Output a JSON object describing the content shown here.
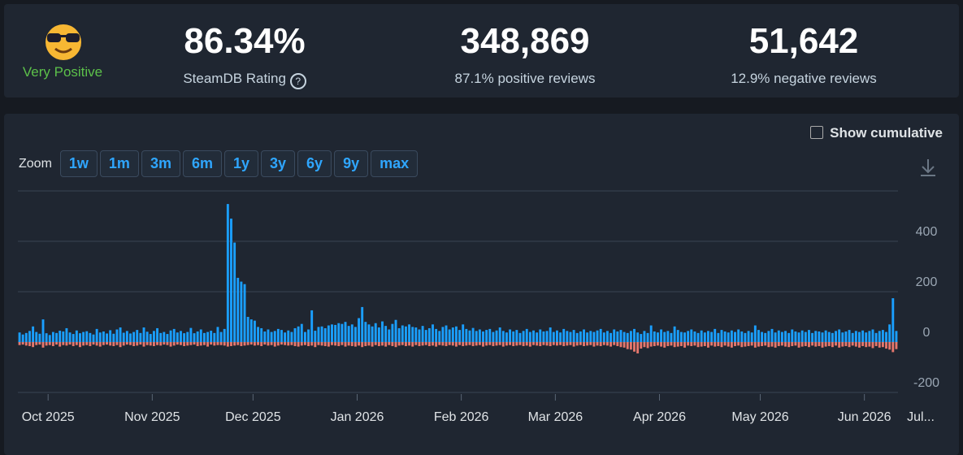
{
  "stats": {
    "label": "Very Positive",
    "rating": "86.34%",
    "rating_label": "SteamDB Rating",
    "positive": "348,869",
    "positive_label": "87.1% positive reviews",
    "negative": "51,642",
    "negative_label": "12.9% negative reviews"
  },
  "controls": {
    "cumulative": "Show cumulative",
    "zoom": "Zoom",
    "buttons": [
      "1w",
      "1m",
      "3m",
      "6m",
      "1y",
      "3y",
      "6y",
      "9y",
      "max"
    ]
  },
  "chart_data": {
    "type": "bar",
    "xlim": [
      0,
      262
    ],
    "xticks": [
      {
        "value": 9,
        "label": "Oct 2025"
      },
      {
        "value": 40,
        "label": "Nov 2025"
      },
      {
        "value": 70,
        "label": "Dec 2025"
      },
      {
        "value": 101,
        "label": "Jan 2026"
      },
      {
        "value": 132,
        "label": "Feb 2026"
      },
      {
        "value": 160,
        "label": "Mar 2026"
      },
      {
        "value": 191,
        "label": "Apr 2026"
      },
      {
        "value": 221,
        "label": "May 2026"
      },
      {
        "value": 252,
        "label": "Jun 2026"
      },
      {
        "value": 282,
        "label": "Jul..."
      }
    ],
    "ylim": [
      -200,
      600
    ],
    "yticks": [
      -200,
      0,
      200,
      400
    ],
    "grid": true,
    "series": [
      {
        "color": "#1a9fff",
        "values": [
          38,
          30,
          36,
          44,
          62,
          40,
          33,
          90,
          35,
          28,
          40,
          36,
          45,
          42,
          55,
          38,
          32,
          46,
          35,
          40,
          43,
          36,
          30,
          52,
          38,
          42,
          34,
          47,
          33,
          50,
          58,
          37,
          44,
          34,
          40,
          48,
          36,
          58,
          41,
          32,
          44,
          55,
          36,
          40,
          32,
          46,
          52,
          38,
          44,
          35,
          40,
          56,
          35,
          42,
          50,
          36,
          40,
          45,
          36,
          60,
          40,
          52,
          548,
          490,
          395,
          255,
          240,
          230,
          100,
          90,
          85,
          60,
          55,
          42,
          50,
          40,
          44,
          52,
          48,
          38,
          46,
          40,
          55,
          62,
          72,
          40,
          50,
          126,
          45,
          60,
          62,
          55,
          66,
          70,
          68,
          75,
          72,
          80,
          64,
          70,
          60,
          95,
          139,
          80,
          70,
          62,
          75,
          58,
          82,
          64,
          50,
          72,
          88,
          55,
          66,
          62,
          70,
          60,
          58,
          50,
          64,
          48,
          55,
          70,
          52,
          44,
          60,
          66,
          50,
          58,
          62,
          48,
          70,
          52,
          46,
          56,
          44,
          50,
          42,
          48,
          52,
          40,
          46,
          58,
          44,
          38,
          50,
          42,
          48,
          36,
          44,
          52,
          40,
          46,
          38,
          50,
          42,
          44,
          58,
          40,
          46,
          38,
          52,
          44,
          40,
          48,
          36,
          42,
          50,
          38,
          44,
          40,
          46,
          52,
          38,
          44,
          36,
          50,
          42,
          48,
          40,
          36,
          44,
          52,
          38,
          32,
          44,
          36,
          66,
          42,
          38,
          50,
          40,
          44,
          36,
          62,
          48,
          40,
          38,
          44,
          50,
          42,
          36,
          46,
          38,
          44,
          40,
          52,
          36,
          48,
          42,
          38,
          46,
          40,
          50,
          42,
          36,
          44,
          38,
          66,
          48,
          40,
          36,
          44,
          52,
          38,
          46,
          40,
          44,
          36,
          50,
          42,
          38,
          46,
          40,
          48,
          36,
          44,
          42,
          38,
          46,
          40,
          36,
          44,
          50,
          38,
          42,
          48,
          36,
          44,
          40,
          46,
          38,
          44,
          50,
          36,
          44,
          48,
          40,
          70,
          174,
          44
        ]
      },
      {
        "color": "#e5776d",
        "values": [
          -12,
          -10,
          -14,
          -16,
          -20,
          -12,
          -10,
          -22,
          -14,
          -12,
          -16,
          -10,
          -18,
          -12,
          -14,
          -10,
          -16,
          -12,
          -20,
          -14,
          -12,
          -16,
          -10,
          -14,
          -18,
          -12,
          -10,
          -14,
          -16,
          -12,
          -20,
          -14,
          -10,
          -12,
          -16,
          -14,
          -10,
          -18,
          -12,
          -14,
          -16,
          -12,
          -14,
          -10,
          -12,
          -18,
          -14,
          -10,
          -12,
          -16,
          -14,
          -12,
          -10,
          -16,
          -14,
          -12,
          -18,
          -10,
          -14,
          -12,
          -12,
          -14,
          -18,
          -16,
          -14,
          -12,
          -16,
          -14,
          -12,
          -10,
          -14,
          -12,
          -16,
          -10,
          -14,
          -12,
          -18,
          -14,
          -10,
          -12,
          -14,
          -12,
          -16,
          -18,
          -14,
          -12,
          -16,
          -14,
          -20,
          -12,
          -14,
          -16,
          -18,
          -12,
          -14,
          -16,
          -12,
          -18,
          -14,
          -16,
          -18,
          -14,
          -20,
          -16,
          -14,
          -18,
          -12,
          -16,
          -14,
          -18,
          -12,
          -16,
          -20,
          -14,
          -12,
          -16,
          -14,
          -18,
          -12,
          -16,
          -14,
          -12,
          -16,
          -14,
          -18,
          -12,
          -14,
          -16,
          -12,
          -14,
          -18,
          -12,
          -16,
          -14,
          -12,
          -16,
          -14,
          -12,
          -18,
          -14,
          -12,
          -16,
          -14,
          -12,
          -18,
          -14,
          -12,
          -16,
          -14,
          -12,
          -16,
          -14,
          -18,
          -12,
          -14,
          -16,
          -12,
          -14,
          -16,
          -12,
          -14,
          -12,
          -16,
          -14,
          -12,
          -18,
          -14,
          -12,
          -16,
          -14,
          -12,
          -18,
          -14,
          -16,
          -12,
          -14,
          -18,
          -12,
          -16,
          -20,
          -22,
          -28,
          -30,
          -38,
          -45,
          -26,
          -20,
          -24,
          -18,
          -16,
          -14,
          -18,
          -22,
          -16,
          -14,
          -20,
          -18,
          -16,
          -22,
          -14,
          -16,
          -14,
          -20,
          -18,
          -16,
          -22,
          -14,
          -18,
          -16,
          -20,
          -14,
          -18,
          -22,
          -16,
          -14,
          -20,
          -18,
          -16,
          -14,
          -22,
          -18,
          -16,
          -14,
          -20,
          -18,
          -22,
          -16,
          -14,
          -18,
          -20,
          -16,
          -14,
          -22,
          -18,
          -16,
          -20,
          -14,
          -18,
          -16,
          -22,
          -18,
          -16,
          -20,
          -14,
          -22,
          -18,
          -16,
          -20,
          -14,
          -18,
          -22,
          -16,
          -20,
          -18,
          -24,
          -16,
          -22,
          -20,
          -26,
          -30,
          -40,
          -28
        ]
      }
    ]
  }
}
